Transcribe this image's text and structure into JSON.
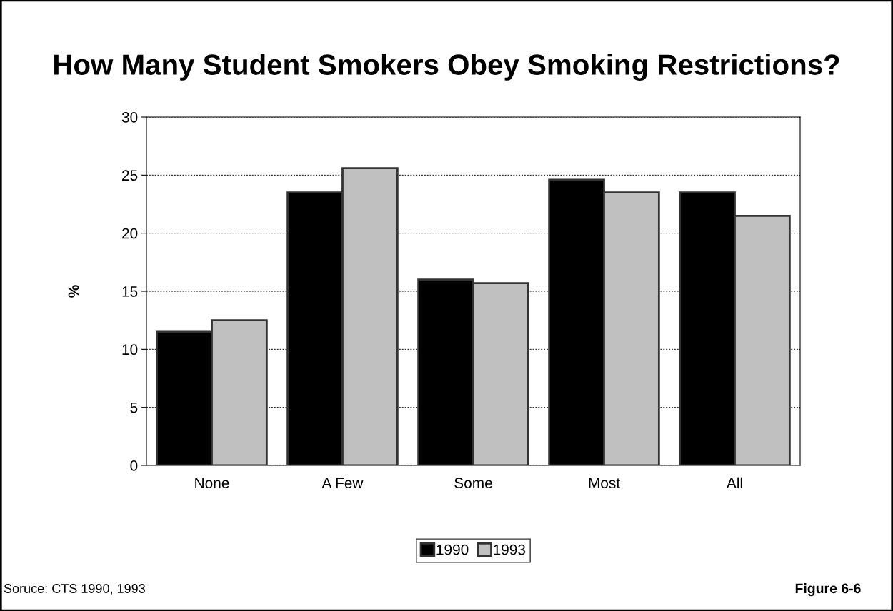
{
  "chart_data": {
    "type": "bar",
    "title": "How Many Student Smokers Obey Smoking Restrictions?",
    "ylabel": "%",
    "categories": [
      "None",
      "A Few",
      "Some",
      "Most",
      "All"
    ],
    "series": [
      {
        "name": "1990",
        "color": "#000000",
        "values": [
          11.5,
          23.5,
          16.0,
          24.6,
          23.5
        ]
      },
      {
        "name": "1993",
        "color": "#c0c0c0",
        "values": [
          12.5,
          25.6,
          15.7,
          23.5,
          21.5
        ]
      }
    ],
    "ylim": [
      0,
      30
    ],
    "yticks": [
      0,
      5,
      10,
      15,
      20,
      25,
      30
    ],
    "grid": "y",
    "legend": "bottom",
    "annotations": [
      "Soruce: CTS 1990, 1993",
      "Figure 6-6"
    ]
  }
}
